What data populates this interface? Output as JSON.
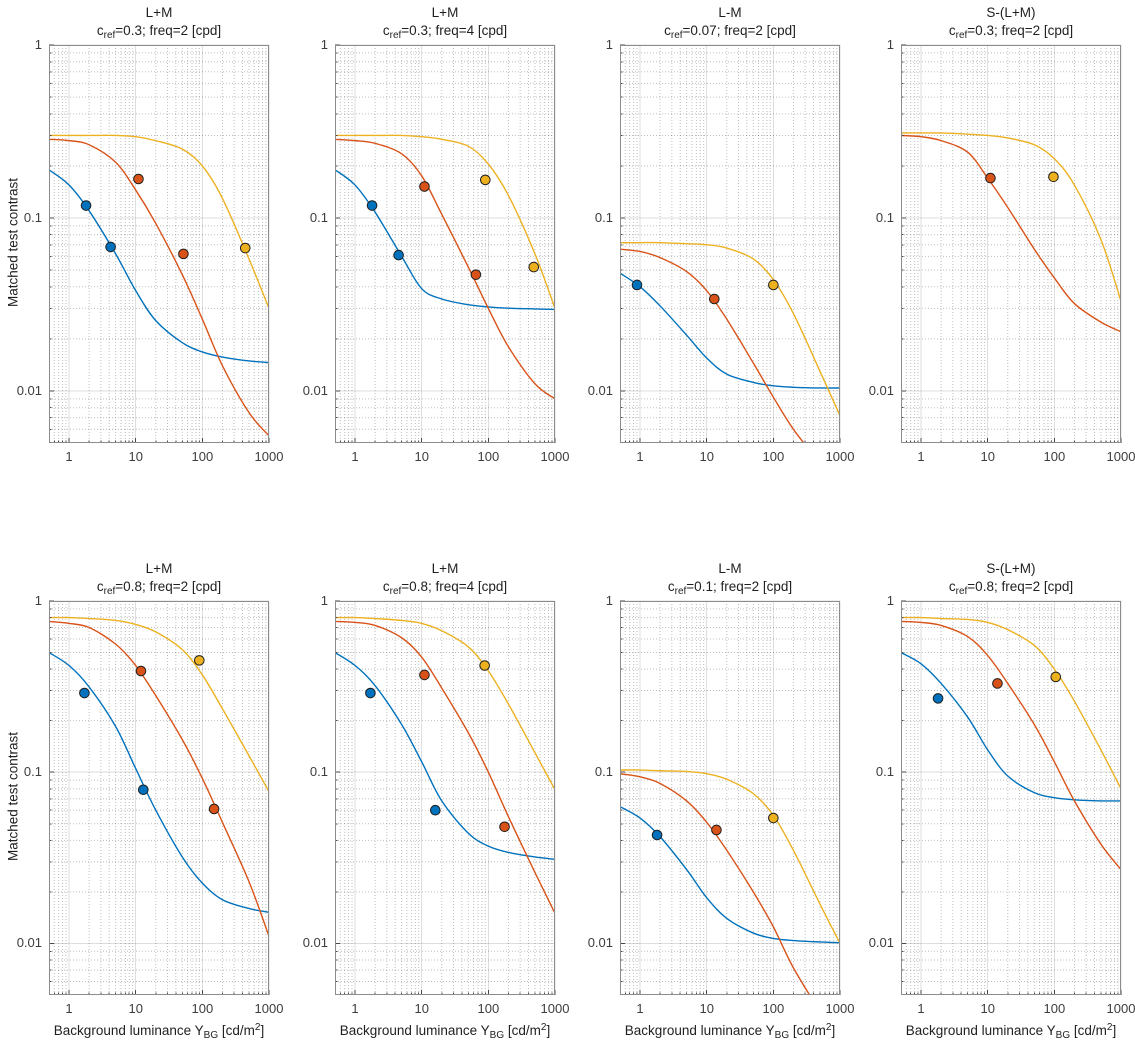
{
  "figure": {
    "ylabel": "Matched test contrast",
    "xlabel": {
      "pre": "Background luminance Y",
      "sub": "BG",
      "mid": " [cd/m",
      "sup": "2",
      "post": "]"
    },
    "x_ticks": [
      {
        "v": 1,
        "label": "1"
      },
      {
        "v": 10,
        "label": "10"
      },
      {
        "v": 100,
        "label": "100"
      },
      {
        "v": 1000,
        "label": "1000"
      }
    ],
    "y_ticks": [
      {
        "v": 1,
        "label": "1"
      },
      {
        "v": 0.1,
        "label": "0.1"
      },
      {
        "v": 0.01,
        "label": "0.01"
      }
    ],
    "xlim": [
      0.5,
      1000
    ],
    "ylim": [
      0.005,
      1
    ],
    "colors": {
      "blue": "#0072BD",
      "orange": "#D95319",
      "yellow": "#EDB120"
    },
    "grid": "on",
    "minor_grid": "dotted"
  },
  "chart_data": [
    {
      "type": "line",
      "title": "L+M",
      "subtitle": {
        "pre": "c",
        "sub": "ref",
        "rest": "=0.3; freq=2 [cpd]"
      },
      "cref": 0.3,
      "freq": 2,
      "x_samples": [
        0.5,
        1,
        2,
        5,
        10,
        20,
        50,
        100,
        200,
        500,
        1000
      ],
      "series": [
        {
          "name": "blue",
          "color": "#0072BD",
          "curve_y": [
            0.19,
            0.155,
            0.11,
            0.062,
            0.038,
            0.0255,
            0.019,
            0.0168,
            0.0157,
            0.0149,
            0.0146
          ],
          "points": [
            [
              1.8,
              0.118
            ],
            [
              4.2,
              0.068
            ]
          ]
        },
        {
          "name": "orange",
          "color": "#D95319",
          "curve_y": [
            0.285,
            0.28,
            0.265,
            0.21,
            0.145,
            0.093,
            0.047,
            0.026,
            0.014,
            0.0075,
            0.0055
          ],
          "points": [
            [
              11,
              0.168
            ],
            [
              52,
              0.062
            ]
          ]
        },
        {
          "name": "yellow",
          "color": "#EDB120",
          "curve_y": [
            0.3,
            0.3,
            0.3,
            0.3,
            0.295,
            0.28,
            0.25,
            0.2,
            0.13,
            0.058,
            0.03
          ],
          "points": [
            [
              440,
              0.067
            ]
          ]
        }
      ]
    },
    {
      "type": "line",
      "title": "L+M",
      "subtitle": {
        "pre": "c",
        "sub": "ref",
        "rest": "=0.3; freq=4 [cpd]"
      },
      "cref": 0.3,
      "freq": 4,
      "x_samples": [
        0.5,
        1,
        2,
        5,
        10,
        20,
        50,
        100,
        200,
        500,
        1000
      ],
      "series": [
        {
          "name": "blue",
          "color": "#0072BD",
          "curve_y": [
            0.19,
            0.155,
            0.108,
            0.06,
            0.039,
            0.034,
            0.0315,
            0.0306,
            0.0301,
            0.0298,
            0.0296
          ],
          "points": [
            [
              1.8,
              0.118
            ],
            [
              4.5,
              0.061
            ]
          ]
        },
        {
          "name": "orange",
          "color": "#D95319",
          "curve_y": [
            0.285,
            0.28,
            0.27,
            0.235,
            0.175,
            0.105,
            0.052,
            0.03,
            0.018,
            0.011,
            0.009
          ],
          "points": [
            [
              11,
              0.152
            ],
            [
              65,
              0.047
            ]
          ]
        },
        {
          "name": "yellow",
          "color": "#EDB120",
          "curve_y": [
            0.3,
            0.3,
            0.3,
            0.3,
            0.295,
            0.285,
            0.26,
            0.205,
            0.135,
            0.062,
            0.03
          ],
          "points": [
            [
              90,
              0.166
            ],
            [
              480,
              0.052
            ]
          ]
        }
      ]
    },
    {
      "type": "line",
      "title": "L-M",
      "subtitle": {
        "pre": "c",
        "sub": "ref",
        "rest": "=0.07; freq=2 [cpd]"
      },
      "cref": 0.07,
      "freq": 2,
      "x_samples": [
        0.5,
        1,
        2,
        5,
        10,
        20,
        50,
        100,
        200,
        500,
        1000
      ],
      "series": [
        {
          "name": "blue",
          "color": "#0072BD",
          "curve_y": [
            0.048,
            0.04,
            0.031,
            0.021,
            0.0155,
            0.0125,
            0.0112,
            0.0107,
            0.0105,
            0.0104,
            0.0104
          ],
          "points": [
            [
              0.9,
              0.041
            ]
          ]
        },
        {
          "name": "orange",
          "color": "#D95319",
          "curve_y": [
            0.066,
            0.064,
            0.059,
            0.049,
            0.038,
            0.026,
            0.0145,
            0.0092,
            0.006,
            0.0038,
            0.0026
          ],
          "points": [
            [
              13,
              0.034
            ]
          ]
        },
        {
          "name": "yellow",
          "color": "#EDB120",
          "curve_y": [
            0.072,
            0.072,
            0.072,
            0.071,
            0.07,
            0.067,
            0.058,
            0.044,
            0.028,
            0.013,
            0.0072
          ],
          "points": [
            [
              100,
              0.041
            ]
          ]
        }
      ]
    },
    {
      "type": "line",
      "title": "S-(L+M)",
      "subtitle": {
        "pre": "c",
        "sub": "ref",
        "rest": "=0.3; freq=2 [cpd]"
      },
      "cref": 0.3,
      "freq": 2,
      "x_samples": [
        0.5,
        1,
        2,
        5,
        10,
        20,
        50,
        100,
        200,
        500,
        1000
      ],
      "series": [
        {
          "name": "orange",
          "color": "#D95319",
          "curve_y": [
            0.3,
            0.295,
            0.28,
            0.24,
            0.17,
            0.115,
            0.066,
            0.045,
            0.032,
            0.025,
            0.022
          ],
          "points": [
            [
              11,
              0.17
            ]
          ]
        },
        {
          "name": "yellow",
          "color": "#EDB120",
          "curve_y": [
            0.31,
            0.31,
            0.31,
            0.305,
            0.3,
            0.29,
            0.265,
            0.22,
            0.155,
            0.075,
            0.033
          ],
          "points": [
            [
              97,
              0.173
            ]
          ]
        }
      ]
    },
    {
      "type": "line",
      "title": "L+M",
      "subtitle": {
        "pre": "c",
        "sub": "ref",
        "rest": "=0.8; freq=2 [cpd]"
      },
      "cref": 0.8,
      "freq": 2,
      "x_samples": [
        0.5,
        1,
        2,
        5,
        10,
        20,
        50,
        100,
        200,
        500,
        1000
      ],
      "series": [
        {
          "name": "blue",
          "color": "#0072BD",
          "curve_y": [
            0.5,
            0.42,
            0.315,
            0.185,
            0.105,
            0.06,
            0.032,
            0.0225,
            0.018,
            0.016,
            0.0152
          ],
          "points": [
            [
              1.7,
              0.29
            ],
            [
              13,
              0.079
            ]
          ]
        },
        {
          "name": "orange",
          "color": "#D95319",
          "curve_y": [
            0.76,
            0.74,
            0.7,
            0.56,
            0.42,
            0.28,
            0.155,
            0.092,
            0.051,
            0.023,
            0.011
          ],
          "points": [
            [
              12,
              0.39
            ],
            [
              150,
              0.061
            ]
          ]
        },
        {
          "name": "yellow",
          "color": "#EDB120",
          "curve_y": [
            0.8,
            0.8,
            0.79,
            0.77,
            0.73,
            0.66,
            0.52,
            0.37,
            0.235,
            0.125,
            0.077
          ],
          "points": [
            [
              90,
              0.45
            ]
          ]
        }
      ]
    },
    {
      "type": "line",
      "title": "L+M",
      "subtitle": {
        "pre": "c",
        "sub": "ref",
        "rest": "=0.8; freq=4 [cpd]"
      },
      "cref": 0.8,
      "freq": 4,
      "x_samples": [
        0.5,
        1,
        2,
        5,
        10,
        20,
        50,
        100,
        200,
        500,
        1000
      ],
      "series": [
        {
          "name": "blue",
          "color": "#0072BD",
          "curve_y": [
            0.5,
            0.42,
            0.32,
            0.19,
            0.115,
            0.068,
            0.044,
            0.037,
            0.034,
            0.032,
            0.031
          ],
          "points": [
            [
              1.7,
              0.29
            ],
            [
              16,
              0.06
            ]
          ]
        },
        {
          "name": "orange",
          "color": "#D95319",
          "curve_y": [
            0.76,
            0.75,
            0.72,
            0.61,
            0.47,
            0.31,
            0.17,
            0.1,
            0.055,
            0.026,
            0.015
          ],
          "points": [
            [
              11,
              0.37
            ],
            [
              175,
              0.048
            ]
          ]
        },
        {
          "name": "yellow",
          "color": "#EDB120",
          "curve_y": [
            0.8,
            0.8,
            0.79,
            0.77,
            0.74,
            0.67,
            0.54,
            0.39,
            0.25,
            0.13,
            0.079
          ],
          "points": [
            [
              88,
              0.42
            ]
          ]
        }
      ]
    },
    {
      "type": "line",
      "title": "L-M",
      "subtitle": {
        "pre": "c",
        "sub": "ref",
        "rest": "=0.1; freq=2 [cpd]"
      },
      "cref": 0.1,
      "freq": 2,
      "x_samples": [
        0.5,
        1,
        2,
        5,
        10,
        20,
        50,
        100,
        200,
        500,
        1000
      ],
      "series": [
        {
          "name": "blue",
          "color": "#0072BD",
          "curve_y": [
            0.063,
            0.054,
            0.042,
            0.027,
            0.0185,
            0.014,
            0.0115,
            0.0107,
            0.0104,
            0.0102,
            0.0101
          ],
          "points": [
            [
              1.8,
              0.043
            ]
          ]
        },
        {
          "name": "orange",
          "color": "#D95319",
          "curve_y": [
            0.098,
            0.094,
            0.086,
            0.068,
            0.051,
            0.035,
            0.02,
            0.0125,
            0.0072,
            0.004,
            0.0026
          ],
          "points": [
            [
              14,
              0.046
            ]
          ]
        },
        {
          "name": "yellow",
          "color": "#EDB120",
          "curve_y": [
            0.103,
            0.103,
            0.102,
            0.101,
            0.098,
            0.091,
            0.075,
            0.056,
            0.035,
            0.017,
            0.01
          ],
          "points": [
            [
              100,
              0.054
            ]
          ]
        }
      ]
    },
    {
      "type": "line",
      "title": "S-(L+M)",
      "subtitle": {
        "pre": "c",
        "sub": "ref",
        "rest": "=0.8; freq=2 [cpd]"
      },
      "cref": 0.8,
      "freq": 2,
      "x_samples": [
        0.5,
        1,
        2,
        5,
        10,
        20,
        50,
        100,
        200,
        500,
        1000
      ],
      "series": [
        {
          "name": "blue",
          "color": "#0072BD",
          "curve_y": [
            0.5,
            0.43,
            0.33,
            0.21,
            0.135,
            0.095,
            0.076,
            0.071,
            0.069,
            0.068,
            0.068
          ],
          "points": [
            [
              1.8,
              0.27
            ]
          ]
        },
        {
          "name": "orange",
          "color": "#D95319",
          "curve_y": [
            0.76,
            0.75,
            0.72,
            0.62,
            0.48,
            0.33,
            0.19,
            0.115,
            0.068,
            0.038,
            0.027
          ],
          "points": [
            [
              14,
              0.33
            ]
          ]
        },
        {
          "name": "yellow",
          "color": "#EDB120",
          "curve_y": [
            0.8,
            0.8,
            0.79,
            0.78,
            0.75,
            0.68,
            0.55,
            0.4,
            0.26,
            0.135,
            0.08
          ],
          "points": [
            [
              105,
              0.36
            ]
          ]
        }
      ]
    }
  ]
}
